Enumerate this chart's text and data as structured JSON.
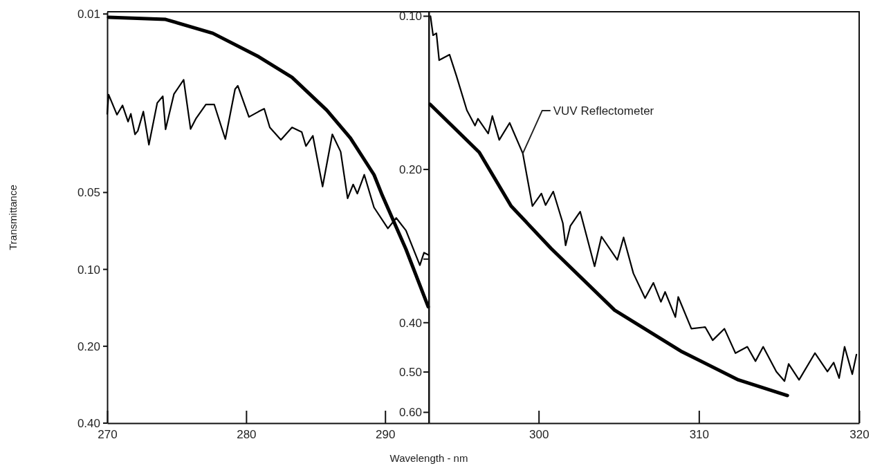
{
  "chart_data": [
    {
      "type": "line",
      "ylabel": "Transmittance",
      "log": true,
      "xlim": [
        270,
        293.15
      ],
      "xticks": [
        270,
        280,
        290
      ],
      "ylim": [
        0.4,
        0.0098
      ],
      "yticks": [
        {
          "value": 0.01,
          "label": "0.01"
        },
        {
          "value": 0.05,
          "label": "0.05"
        },
        {
          "value": 0.1,
          "label": "0.10"
        },
        {
          "value": 0.2,
          "label": "0.20"
        },
        {
          "value": 0.4,
          "label": "0.40"
        }
      ],
      "series": [
        {
          "color": "#000000",
          "x": [
            270.1,
            274.2,
            277.6,
            280.9,
            283.3,
            285.8,
            287.5,
            289.2,
            289.8,
            291.5,
            293.1
          ],
          "values": [
            0.0103,
            0.0105,
            0.0119,
            0.0147,
            0.0177,
            0.0238,
            0.0306,
            0.0426,
            0.0514,
            0.0834,
            0.14
          ]
        },
        {
          "color": "#000000",
          "x": [
            270.0,
            270.1,
            270.7,
            271.1,
            271.5,
            271.7,
            272.0,
            272.2,
            272.6,
            273.0,
            273.6,
            274.0,
            274.2,
            274.8,
            275.5,
            276.0,
            276.4,
            277.1,
            277.7,
            278.2,
            278.5,
            279.2,
            279.4,
            280.2,
            280.9,
            281.3,
            281.7,
            282.5,
            283.3,
            284.0,
            284.3,
            284.8,
            285.5,
            286.2,
            286.8,
            287.3,
            287.7,
            288.0,
            288.5,
            289.2,
            290.2,
            290.8,
            291.5,
            292.5,
            292.8,
            293.1
          ],
          "values": [
            0.0246,
            0.0207,
            0.0248,
            0.0228,
            0.0264,
            0.0246,
            0.0296,
            0.0287,
            0.0241,
            0.0325,
            0.0223,
            0.021,
            0.0283,
            0.0206,
            0.0181,
            0.0282,
            0.0256,
            0.0226,
            0.0226,
            0.0275,
            0.0309,
            0.0197,
            0.0191,
            0.0253,
            0.0241,
            0.0235,
            0.0278,
            0.0311,
            0.0278,
            0.029,
            0.0329,
            0.03,
            0.0474,
            0.0296,
            0.0346,
            0.0527,
            0.0465,
            0.0505,
            0.0426,
            0.0572,
            0.0691,
            0.0629,
            0.0704,
            0.0963,
            0.086,
            0.0877
          ]
        }
      ]
    },
    {
      "type": "line",
      "xlabel": "Wavelength - nm",
      "log": true,
      "xlim": [
        293.15,
        320
      ],
      "xticks": [
        300,
        310,
        320
      ],
      "ylim": [
        0.63,
        0.098
      ],
      "yticks": [
        {
          "value": 0.1,
          "label": "0.10"
        },
        {
          "value": 0.2,
          "label": "0.20"
        },
        {
          "value": 0.3,
          "label": null
        },
        {
          "value": 0.4,
          "label": "0.40"
        },
        {
          "value": 0.5,
          "label": "0.50"
        },
        {
          "value": 0.6,
          "label": "0.60"
        }
      ],
      "series": [
        {
          "color": "#000000",
          "x": [
            293.23,
            296.29,
            298.28,
            300.78,
            304.74,
            308.88,
            312.46,
            315.52
          ],
          "values": [
            0.149,
            0.185,
            0.236,
            0.286,
            0.378,
            0.455,
            0.518,
            0.556
          ]
        },
        {
          "name": "VUV Reflectometer",
          "color": "#000000",
          "x": [
            293.25,
            293.41,
            293.62,
            293.79,
            294.44,
            294.87,
            295.52,
            296.03,
            296.21,
            296.85,
            297.11,
            297.54,
            298.19,
            299.01,
            299.61,
            300.17,
            300.43,
            300.91,
            301.51,
            301.68,
            301.98,
            302.59,
            303.49,
            303.92,
            304.91,
            305.3,
            305.91,
            306.64,
            307.16,
            307.63,
            307.89,
            308.53,
            308.71,
            309.53,
            310.39,
            310.86,
            311.59,
            312.28,
            313.02,
            313.53,
            314.01,
            314.83,
            315.34,
            315.6,
            316.25,
            317.24,
            318.02,
            318.41,
            318.75,
            319.09,
            319.57,
            319.83
          ],
          "values": [
            0.1,
            0.109,
            0.108,
            0.122,
            0.119,
            0.131,
            0.153,
            0.164,
            0.159,
            0.17,
            0.157,
            0.175,
            0.162,
            0.186,
            0.236,
            0.223,
            0.235,
            0.221,
            0.255,
            0.282,
            0.258,
            0.242,
            0.31,
            0.271,
            0.301,
            0.272,
            0.32,
            0.358,
            0.334,
            0.364,
            0.348,
            0.39,
            0.356,
            0.411,
            0.408,
            0.433,
            0.411,
            0.459,
            0.446,
            0.476,
            0.446,
            0.499,
            0.521,
            0.482,
            0.518,
            0.459,
            0.499,
            0.479,
            0.514,
            0.446,
            0.505,
            0.462
          ]
        }
      ]
    }
  ]
}
